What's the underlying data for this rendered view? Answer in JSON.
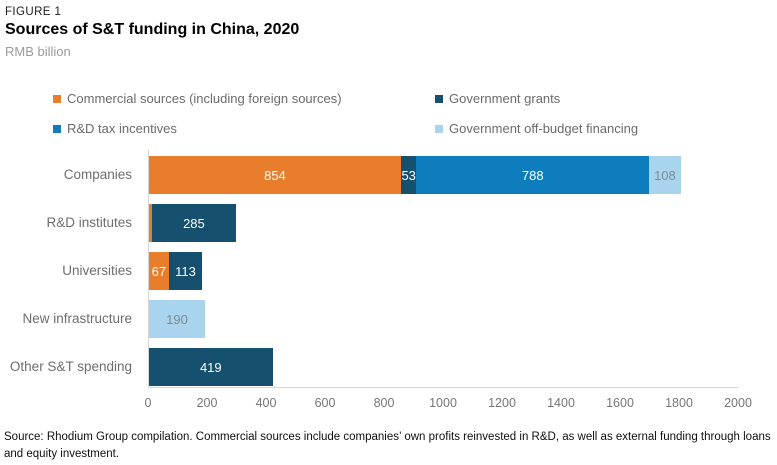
{
  "header": {
    "kicker": "FIGURE 1",
    "title": "Sources of S&T funding in China, 2020",
    "unit": "RMB billion"
  },
  "source_note": "Source: Rhodium Group compilation. Commercial sources include companies’ own profits reinvested in R&D, as well as external funding through loans and equity investment.",
  "chart_data": {
    "type": "bar",
    "orientation": "horizontal",
    "stacked": true,
    "title": "Sources of S&T funding in China, 2020",
    "unit_label": "RMB billion",
    "categories": [
      "Companies",
      "R&D institutes",
      "Universities",
      "New infrastructure",
      "Other S&T spending"
    ],
    "series": [
      {
        "name": "Commercial sources (including foreign sources)",
        "color": "#E87D2B",
        "label_color": "#ffffff",
        "values": [
          854,
          10,
          67,
          0,
          0
        ]
      },
      {
        "name": "Government grants",
        "color": "#15506E",
        "label_color": "#ffffff",
        "values": [
          53,
          285,
          113,
          0,
          419
        ]
      },
      {
        "name": "R&D tax incentives",
        "color": "#0E7DBE",
        "label_color": "#ffffff",
        "values": [
          788,
          0,
          0,
          0,
          0
        ]
      },
      {
        "name": "Government off-budget financing",
        "color": "#A9D4EE",
        "label_color": "#7d8a94",
        "values": [
          108,
          0,
          0,
          190,
          0
        ]
      }
    ],
    "value_label_min": 20,
    "xlabel": "",
    "ylabel": "",
    "x_axis": {
      "min": 0,
      "max": 2000,
      "step": 200,
      "tick_labels": [
        "0",
        "200",
        "400",
        "600",
        "800",
        "1000",
        "1200",
        "1400",
        "1600",
        "1800",
        "2000"
      ]
    },
    "grid": false,
    "legend_position": "top"
  }
}
